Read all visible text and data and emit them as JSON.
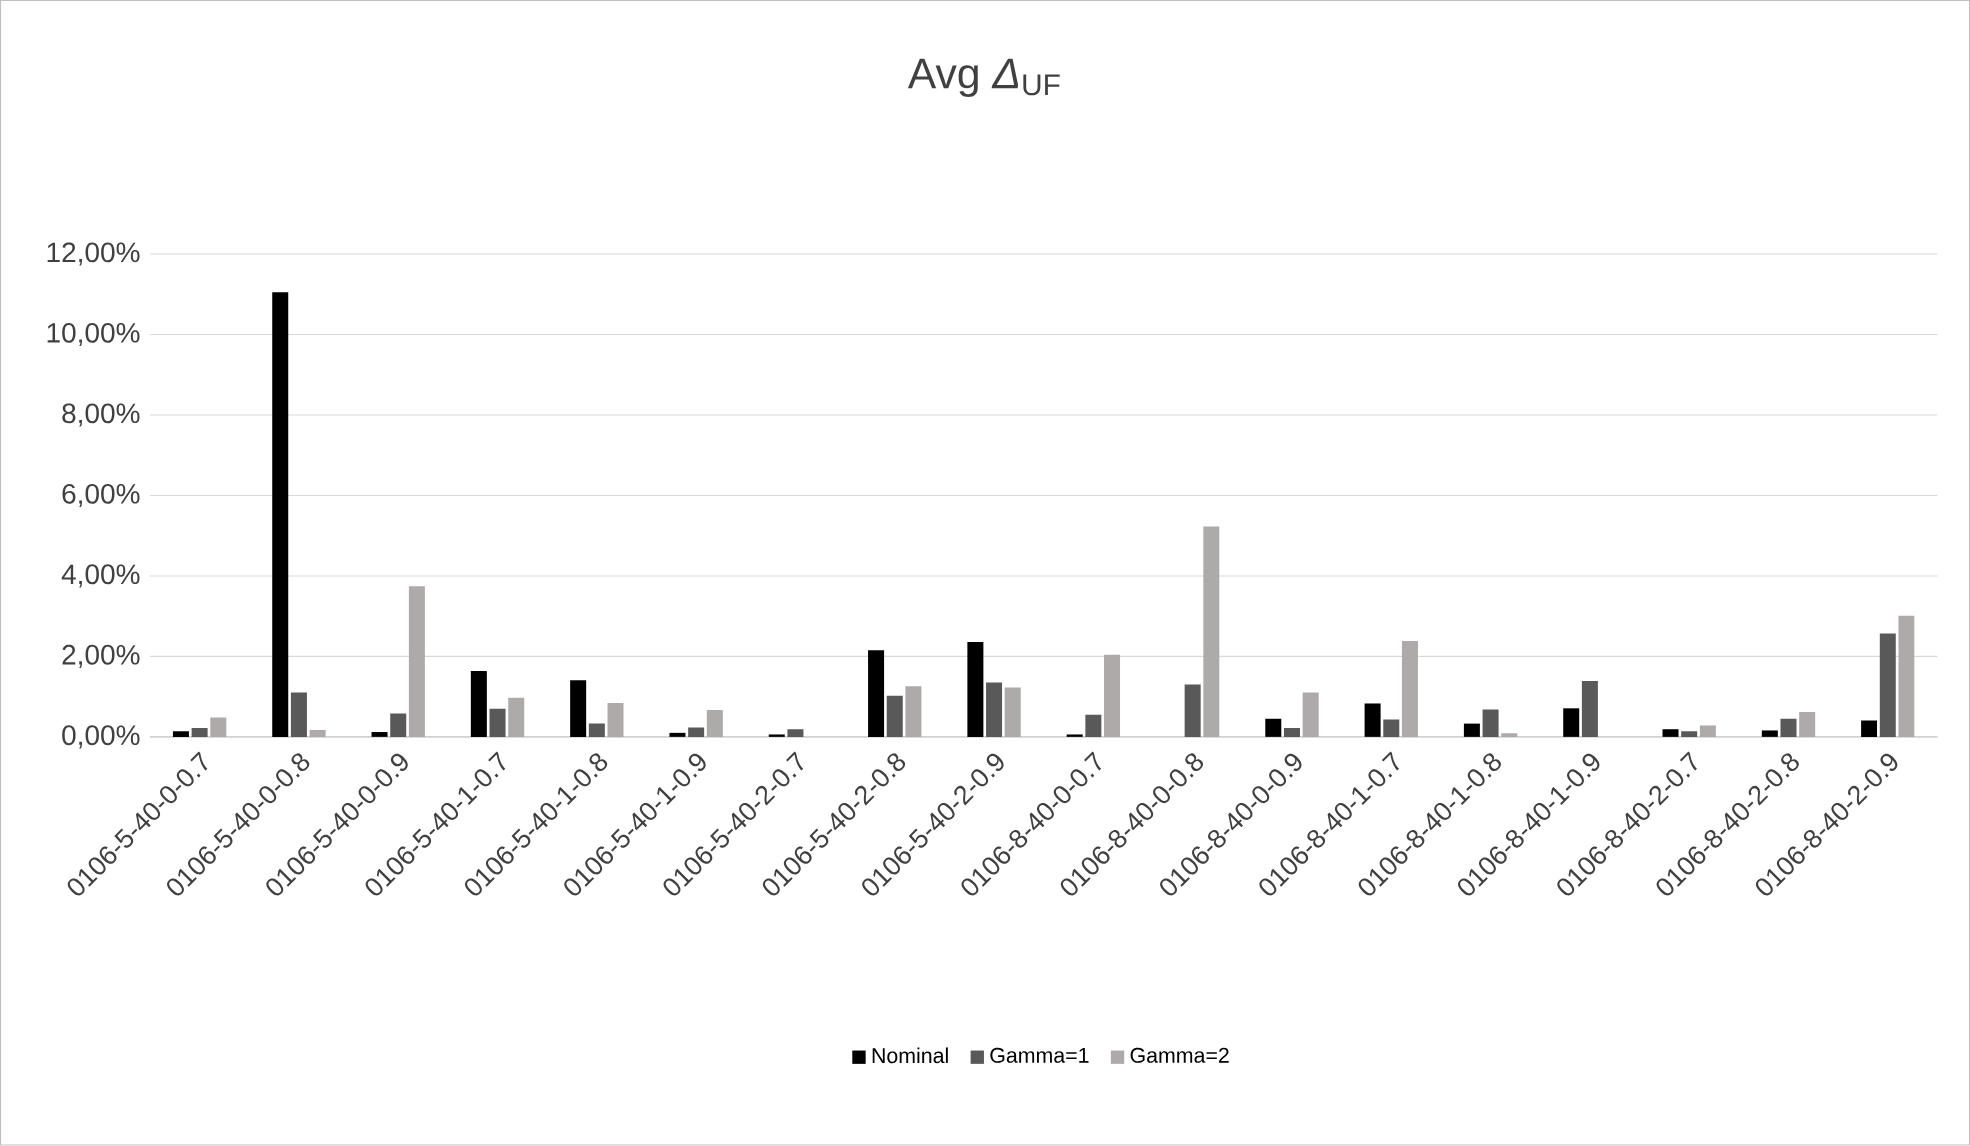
{
  "chart_data": {
    "type": "bar",
    "title": "Avg *Δ*$_{UF}$",
    "categories": [
      "0106-5-40-0-0.7",
      "0106-5-40-0-0.8",
      "0106-5-40-0-0.9",
      "0106-5-40-1-0.7",
      "0106-5-40-1-0.8",
      "0106-5-40-1-0.9",
      "0106-5-40-2-0.7",
      "0106-5-40-2-0.8",
      "0106-5-40-2-0.9",
      "0106-8-40-0-0.7",
      "0106-8-40-0-0.8",
      "0106-8-40-0-0.9",
      "0106-8-40-1-0.7",
      "0106-8-40-1-0.8",
      "0106-8-40-1-0.9",
      "0106-8-40-2-0.7",
      "0106-8-40-2-0.8",
      "0106-8-40-2-0.9"
    ],
    "series": [
      {
        "name": "Nominal",
        "color": "#000000",
        "values": [
          0.14,
          11.05,
          0.12,
          1.64,
          1.41,
          0.1,
          0.06,
          2.15,
          2.36,
          0.06,
          0,
          0.45,
          0.83,
          0.33,
          0.71,
          0.19,
          0.16,
          0.41
        ]
      },
      {
        "name": "Gamma=1",
        "color": "#595959",
        "values": [
          0.22,
          1.1,
          0.58,
          0.7,
          0.33,
          0.23,
          0.19,
          1.02,
          1.35,
          0.55,
          1.3,
          0.22,
          0.43,
          0.68,
          1.39,
          0.14,
          0.45,
          2.57
        ]
      },
      {
        "name": "Gamma=2",
        "color": "#aeaaaa",
        "values": [
          0.48,
          0.17,
          3.74,
          0.97,
          0.84,
          0.67,
          0,
          1.26,
          1.23,
          2.04,
          5.23,
          1.1,
          2.38,
          0.09,
          0,
          0.28,
          0.62,
          3.01
        ]
      }
    ],
    "ylim": [
      0,
      12
    ],
    "yticks": [
      {
        "value": 0,
        "label": "0,00%"
      },
      {
        "value": 2,
        "label": "2,00%"
      },
      {
        "value": 4,
        "label": "4,00%"
      },
      {
        "value": 6,
        "label": "6,00%"
      },
      {
        "value": 8,
        "label": "8,00%"
      },
      {
        "value": 10,
        "label": "10,00%"
      },
      {
        "value": 12,
        "label": "12,00%"
      }
    ],
    "grid": "y",
    "legend": "bottom"
  }
}
